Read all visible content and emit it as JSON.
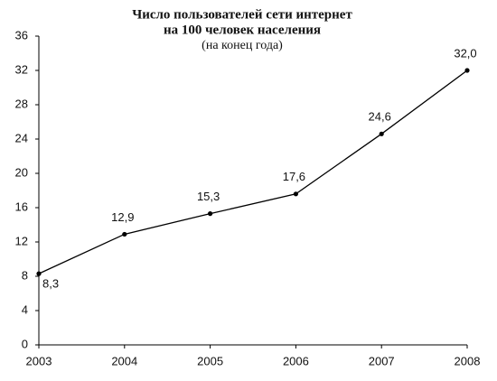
{
  "chart_data": {
    "type": "line",
    "title": [
      "Число пользователей сети интернет",
      "на 100 человек населения"
    ],
    "subtitle": "(на конец года)",
    "x": [
      2003,
      2004,
      2005,
      2006,
      2007,
      2008
    ],
    "values": [
      8.3,
      12.9,
      15.3,
      17.6,
      24.6,
      32.0
    ],
    "value_labels": [
      "8,3",
      "12,9",
      "15,3",
      "17,6",
      "24,6",
      "32,0"
    ],
    "color": "#000000",
    "xlim": [
      2003,
      2008
    ],
    "xticks": [
      2003,
      2004,
      2005,
      2006,
      2007,
      2008
    ],
    "ylim": [
      0,
      36
    ],
    "yticks": [
      0,
      4,
      8,
      12,
      16,
      20,
      24,
      28,
      32,
      36
    ],
    "grid": false
  }
}
